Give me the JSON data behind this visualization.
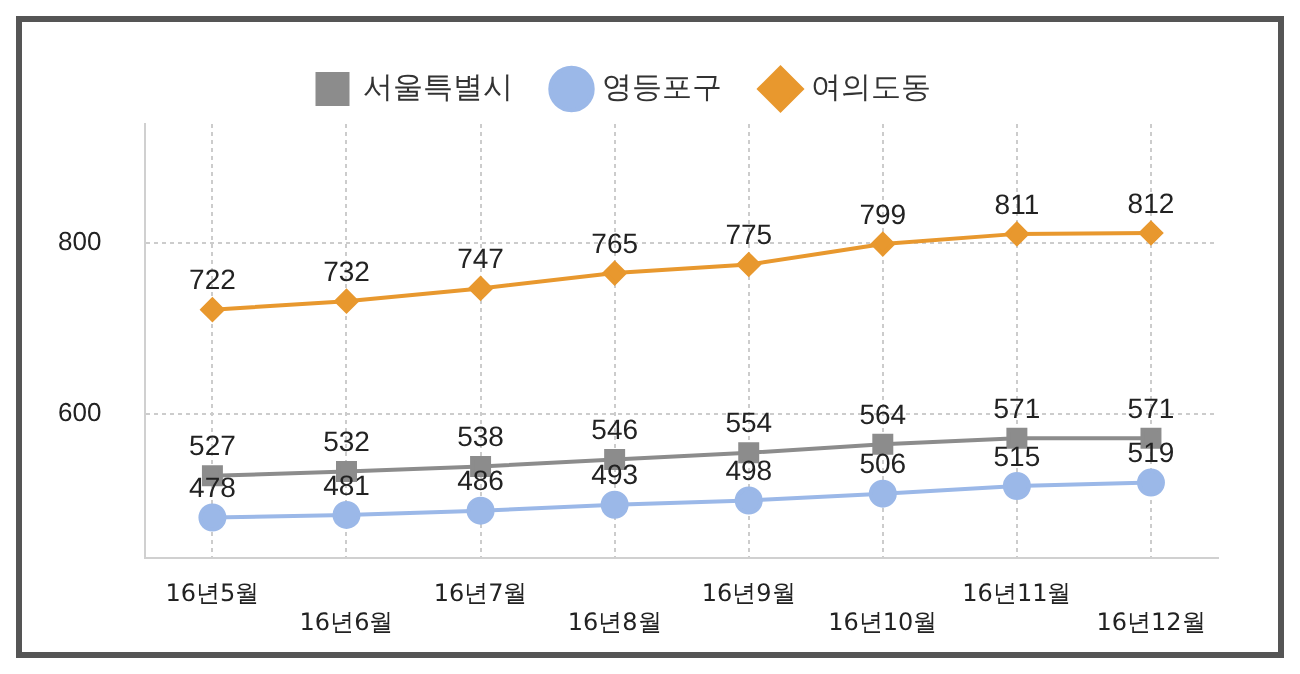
{
  "chart_data": {
    "type": "line",
    "categories": [
      "16년5월",
      "16년6월",
      "16년7월",
      "16년8월",
      "16년9월",
      "16년10월",
      "16년11월",
      "16년12월"
    ],
    "series": [
      {
        "name": "서울특별시",
        "color": "#8c8c8c",
        "marker": "square",
        "values": [
          527,
          532,
          538,
          546,
          554,
          564,
          571,
          571
        ]
      },
      {
        "name": "영등포구",
        "color": "#9bb8e8",
        "marker": "circle",
        "values": [
          478,
          481,
          486,
          493,
          498,
          506,
          515,
          519
        ]
      },
      {
        "name": "여의도동",
        "color": "#e8982e",
        "marker": "diamond",
        "values": [
          722,
          732,
          747,
          765,
          775,
          799,
          811,
          812
        ]
      }
    ],
    "ylim": [
      430,
      940
    ],
    "yticks": [
      600,
      800
    ],
    "grid": true,
    "legend": "top",
    "data_labels": true
  }
}
